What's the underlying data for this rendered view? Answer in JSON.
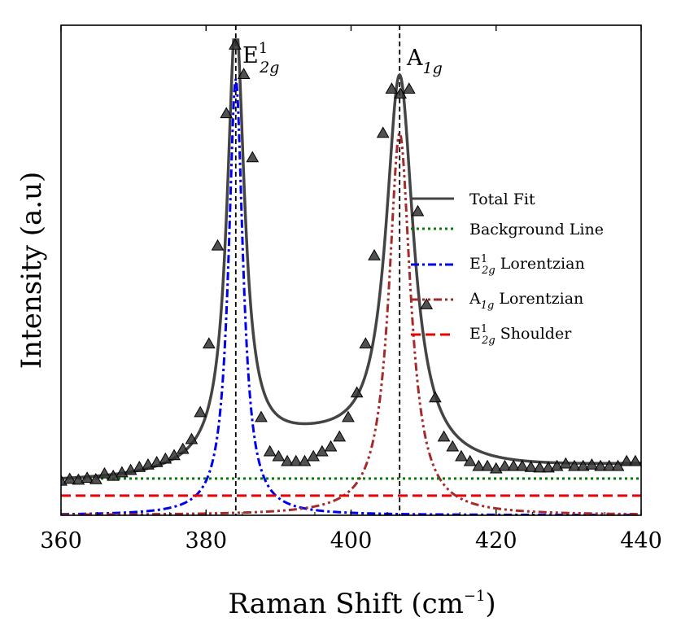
{
  "chart_data": {
    "type": "line",
    "title": "",
    "xlabel": "Raman Shift (cm",
    "xlabel_exp": "−1",
    "xlabel_close": ")",
    "ylabel": "Intensity (a.u)",
    "xlim": [
      360,
      440
    ],
    "ylim": [
      0,
      1.0
    ],
    "xticks": [
      360,
      380,
      400,
      420,
      440
    ],
    "grid": false,
    "legend_position": "center-right",
    "annotations": [
      {
        "base": "E",
        "sup": "1",
        "sub": "2g",
        "x": 384.1
      },
      {
        "base": "A",
        "sup": "",
        "sub": "1g",
        "x": 406.7
      }
    ],
    "vlines": [
      384.1,
      406.7
    ],
    "colors": {
      "total": "#444444",
      "background": "#0a7a0a",
      "e2g": "#0000ee",
      "a1g": "#a52a2a",
      "shoulder": "#ee0000",
      "markers": "#333333"
    },
    "series": [
      {
        "name": "Total Fit",
        "label_base": "Total Fit",
        "style": "solid"
      },
      {
        "name": "Background Line",
        "label_base": "Background Line",
        "style": "dotted"
      },
      {
        "name": "E2g Lorentzian",
        "label_base": "E",
        "label_sup": "1",
        "label_sub": "2g",
        "label_rest": " Lorentzian",
        "style": "dashdot"
      },
      {
        "name": "A1g Lorentzian",
        "label_base": "A",
        "label_sup": "",
        "label_sub": "1g",
        "label_rest": " Lorentzian",
        "style": "dashdotdot"
      },
      {
        "name": "E2g Shoulder",
        "label_base": "E",
        "label_sup": "1",
        "label_sub": "2g",
        "label_rest": " Shoulder",
        "style": "dashed"
      }
    ],
    "model": {
      "background": 0.075,
      "e2g_peak": {
        "center": 384.1,
        "amplitude": 0.89,
        "hwhm": 1.2
      },
      "a1g_peak": {
        "center": 406.7,
        "amplitude": 0.78,
        "hwhm": 1.8
      },
      "shoulder": {
        "level": 0.04
      },
      "total_extra": {
        "a": 0.9
      }
    },
    "data_points": {
      "x": [
        360.0,
        361.2,
        362.4,
        363.6,
        364.8,
        366.0,
        367.2,
        368.4,
        369.6,
        370.8,
        372.0,
        373.2,
        374.4,
        375.6,
        376.8,
        378.0,
        379.2,
        380.4,
        381.6,
        382.8,
        384.0,
        385.2,
        386.4,
        387.6,
        388.8,
        390.0,
        391.2,
        392.4,
        393.6,
        394.8,
        396.0,
        397.2,
        398.4,
        399.6,
        400.8,
        402.0,
        403.2,
        404.4,
        405.6,
        406.8,
        408.0,
        409.2,
        410.4,
        411.6,
        412.8,
        414.0,
        415.2,
        416.4,
        417.6,
        418.8,
        420.0,
        421.2,
        422.4,
        423.6,
        424.8,
        426.0,
        427.2,
        428.4,
        429.6,
        430.8,
        432.0,
        433.2,
        434.4,
        435.6,
        436.8,
        438.0,
        439.2
      ],
      "y": [
        0.07,
        0.074,
        0.072,
        0.076,
        0.073,
        0.085,
        0.08,
        0.087,
        0.092,
        0.098,
        0.103,
        0.108,
        0.115,
        0.122,
        0.135,
        0.155,
        0.21,
        0.35,
        0.55,
        0.82,
        0.96,
        0.9,
        0.73,
        0.2,
        0.13,
        0.12,
        0.11,
        0.11,
        0.11,
        0.12,
        0.13,
        0.14,
        0.16,
        0.2,
        0.25,
        0.35,
        0.53,
        0.78,
        0.87,
        0.86,
        0.87,
        0.62,
        0.43,
        0.24,
        0.16,
        0.14,
        0.12,
        0.11,
        0.1,
        0.1,
        0.095,
        0.1,
        0.1,
        0.1,
        0.098,
        0.097,
        0.097,
        0.1,
        0.105,
        0.1,
        0.1,
        0.103,
        0.1,
        0.1,
        0.1,
        0.11,
        0.11
      ]
    }
  }
}
